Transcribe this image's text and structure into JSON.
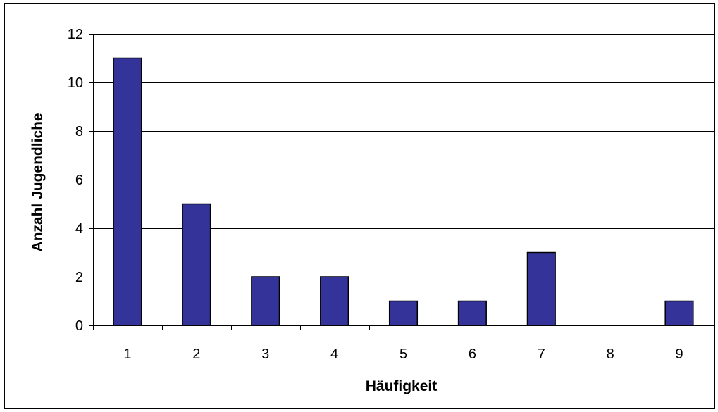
{
  "chart_data": {
    "type": "bar",
    "title": "",
    "xlabel": "Häufigkeit",
    "ylabel": "Anzahl Jugendliche",
    "categories": [
      "1",
      "2",
      "3",
      "4",
      "5",
      "6",
      "7",
      "8",
      "9"
    ],
    "values": [
      11,
      5,
      2,
      2,
      1,
      1,
      3,
      0,
      1
    ],
    "ylim": [
      0,
      12
    ],
    "yticks": [
      0,
      2,
      4,
      6,
      8,
      10,
      12
    ],
    "grid": true,
    "legend": "none",
    "colors": {
      "bar_fill": "#333399",
      "bar_stroke": "#000000",
      "grid": "#000000",
      "axis": "#000000"
    }
  }
}
